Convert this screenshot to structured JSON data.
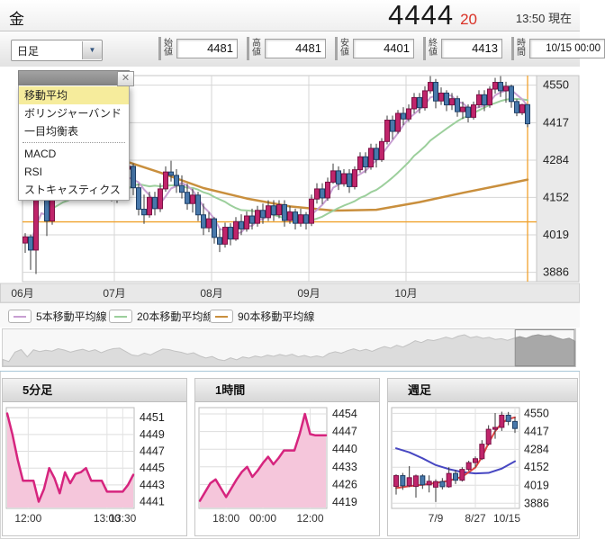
{
  "header": {
    "instrument": "金",
    "price": "4444",
    "price_change": "20",
    "time_label": "13:50 現在"
  },
  "toolbar": {
    "period_select": {
      "value": "日足"
    },
    "fields": [
      {
        "label": "始値",
        "value": "4481"
      },
      {
        "label": "高値",
        "value": "4481"
      },
      {
        "label": "安値",
        "value": "4401"
      },
      {
        "label": "終値",
        "value": "4413"
      },
      {
        "label": "時間",
        "value": "10/15 00:00"
      }
    ]
  },
  "indicator_menu": {
    "items": [
      {
        "label": "移動平均",
        "selected": true
      },
      {
        "label": "ボリンジャーバンド",
        "selected": false
      },
      {
        "label": "一目均衡表",
        "selected": false
      },
      {
        "label": "MACD",
        "selected": false
      },
      {
        "label": "RSI",
        "selected": false
      },
      {
        "label": "ストキャスティクス",
        "selected": false
      }
    ],
    "divider_after_index": 2
  },
  "legend": [
    {
      "label": "5本移動平均線",
      "color": "#c89fd2"
    },
    {
      "label": "20本移動平均線",
      "color": "#9ccf9c"
    },
    {
      "label": "90本移動平均線",
      "color": "#c98f3d"
    }
  ],
  "colors": {
    "up": "#c0256b",
    "up_border": "#7c1146",
    "down": "#4878ab",
    "down_border": "#1e3f66",
    "wick": "#3a3a3a",
    "ma5": "#c89fd2",
    "ma20": "#9ccf9c",
    "ma90": "#c98f3d",
    "reference": "#f0a22e",
    "sub_line": "#d6247e",
    "sub_fill": "#f5c6db",
    "weekly_ma_fast": "#e04343",
    "weekly_ma_slow": "#4747c2",
    "price_change": "#d93025",
    "menu_highlight": "#f6ec9c",
    "grid": "#d6d6d6"
  },
  "chart_data": [
    {
      "type": "candlestick",
      "title": "日足",
      "y_ticks": [
        3886,
        4019,
        4152,
        4284,
        4417,
        4550
      ],
      "y_range": [
        3853,
        4584
      ],
      "x_ticks": [
        {
          "index": 0,
          "label": "06月"
        },
        {
          "index": 17,
          "label": "07月"
        },
        {
          "index": 35,
          "label": "08月"
        },
        {
          "index": 53,
          "label": "09月"
        },
        {
          "index": 71,
          "label": "10月"
        }
      ],
      "reference_line": 4065,
      "current_marker_index": 93,
      "candles": [
        [
          3990,
          4025,
          3955,
          4012
        ],
        [
          4012,
          4020,
          3895,
          3965
        ],
        [
          3965,
          4190,
          3880,
          4175
        ],
        [
          4175,
          4245,
          4140,
          4230
        ],
        [
          4230,
          4240,
          4015,
          4068
        ],
        [
          4068,
          4240,
          4055,
          4225
        ],
        [
          4225,
          4252,
          4160,
          4186
        ],
        [
          4186,
          4232,
          4150,
          4215
        ],
        [
          4215,
          4262,
          4180,
          4196
        ],
        [
          4196,
          4270,
          4172,
          4250
        ],
        [
          4250,
          4280,
          4198,
          4220
        ],
        [
          4220,
          4258,
          4150,
          4172
        ],
        [
          4172,
          4230,
          4142,
          4210
        ],
        [
          4210,
          4252,
          4180,
          4236
        ],
        [
          4236,
          4262,
          4170,
          4190
        ],
        [
          4190,
          4240,
          4162,
          4226
        ],
        [
          4226,
          4240,
          4138,
          4160
        ],
        [
          4160,
          4230,
          4132,
          4216
        ],
        [
          4216,
          4272,
          4190,
          4252
        ],
        [
          4252,
          4292,
          4222,
          4262
        ],
        [
          4262,
          4272,
          4160,
          4186
        ],
        [
          4186,
          4200,
          4088,
          4110
        ],
        [
          4110,
          4162,
          4058,
          4090
        ],
        [
          4090,
          4172,
          4080,
          4152
        ],
        [
          4152,
          4172,
          4088,
          4112
        ],
        [
          4112,
          4202,
          4100,
          4182
        ],
        [
          4182,
          4262,
          4172,
          4242
        ],
        [
          4242,
          4282,
          4208,
          4230
        ],
        [
          4230,
          4252,
          4168,
          4194
        ],
        [
          4194,
          4230,
          4148,
          4170
        ],
        [
          4170,
          4200,
          4108,
          4130
        ],
        [
          4130,
          4182,
          4098,
          4160
        ],
        [
          4160,
          4172,
          4068,
          4090
        ],
        [
          4090,
          4130,
          4018,
          4044
        ],
        [
          4044,
          4100,
          4028,
          4076
        ],
        [
          4076,
          4082,
          3988,
          4010
        ],
        [
          4010,
          4040,
          3958,
          3986
        ],
        [
          3986,
          4062,
          3974,
          4046
        ],
        [
          4046,
          4060,
          3982,
          4004
        ],
        [
          4004,
          4082,
          3998,
          4066
        ],
        [
          4066,
          4092,
          4018,
          4040
        ],
        [
          4040,
          4102,
          4030,
          4086
        ],
        [
          4086,
          4112,
          4038,
          4060
        ],
        [
          4060,
          4122,
          4048,
          4106
        ],
        [
          4106,
          4130,
          4058,
          4080
        ],
        [
          4080,
          4142,
          4068,
          4122
        ],
        [
          4122,
          4142,
          4068,
          4090
        ],
        [
          4090,
          4142,
          4078,
          4126
        ],
        [
          4126,
          4142,
          4048,
          4070
        ],
        [
          4070,
          4122,
          4058,
          4100
        ],
        [
          4100,
          4112,
          4038,
          4060
        ],
        [
          4060,
          4112,
          4048,
          4090
        ],
        [
          4090,
          4100,
          4038,
          4060
        ],
        [
          4060,
          4162,
          4050,
          4146
        ],
        [
          4146,
          4202,
          4130,
          4182
        ],
        [
          4182,
          4202,
          4128,
          4150
        ],
        [
          4150,
          4222,
          4140,
          4206
        ],
        [
          4206,
          4272,
          4200,
          4246
        ],
        [
          4246,
          4262,
          4178,
          4200
        ],
        [
          4200,
          4252,
          4190,
          4236
        ],
        [
          4236,
          4252,
          4168,
          4190
        ],
        [
          4190,
          4262,
          4180,
          4250
        ],
        [
          4250,
          4312,
          4240,
          4296
        ],
        [
          4296,
          4312,
          4238,
          4260
        ],
        [
          4260,
          4342,
          4250,
          4326
        ],
        [
          4326,
          4342,
          4258,
          4286
        ],
        [
          4286,
          4362,
          4278,
          4350
        ],
        [
          4350,
          4442,
          4340,
          4426
        ],
        [
          4426,
          4442,
          4358,
          4386
        ],
        [
          4386,
          4462,
          4378,
          4450
        ],
        [
          4450,
          4472,
          4408,
          4430
        ],
        [
          4430,
          4482,
          4420,
          4466
        ],
        [
          4466,
          4522,
          4450,
          4506
        ],
        [
          4506,
          4522,
          4450,
          4470
        ],
        [
          4470,
          4546,
          4460,
          4530
        ],
        [
          4530,
          4582,
          4520,
          4560
        ],
        [
          4560,
          4572,
          4468,
          4494
        ],
        [
          4494,
          4542,
          4480,
          4522
        ],
        [
          4522,
          4532,
          4458,
          4480
        ],
        [
          4480,
          4522,
          4462,
          4502
        ],
        [
          4502,
          4512,
          4438,
          4456
        ],
        [
          4456,
          4492,
          4430,
          4472
        ],
        [
          4472,
          4482,
          4418,
          4436
        ],
        [
          4436,
          4492,
          4428,
          4480
        ],
        [
          4480,
          4532,
          4470,
          4516
        ],
        [
          4516,
          4532,
          4458,
          4480
        ],
        [
          4480,
          4546,
          4470,
          4536
        ],
        [
          4536,
          4576,
          4520,
          4560
        ],
        [
          4560,
          4582,
          4508,
          4530
        ],
        [
          4530,
          4562,
          4488,
          4546
        ],
        [
          4546,
          4552,
          4470,
          4492
        ],
        [
          4492,
          4500,
          4440,
          4452
        ],
        [
          4452,
          4484,
          4444,
          4481
        ],
        [
          4481,
          4481,
          4401,
          4413
        ]
      ],
      "ma90_points": [
        [
          17,
          4290
        ],
        [
          25,
          4240
        ],
        [
          33,
          4185
        ],
        [
          41,
          4148
        ],
        [
          49,
          4120
        ],
        [
          57,
          4105
        ],
        [
          65,
          4108
        ],
        [
          73,
          4135
        ],
        [
          81,
          4168
        ],
        [
          88,
          4195
        ],
        [
          93,
          4215
        ]
      ]
    },
    {
      "type": "area",
      "title": "5分足",
      "y_ticks": [
        4441,
        4443,
        4445,
        4447,
        4449,
        4451
      ],
      "y_range": [
        4440.2,
        4452.2
      ],
      "x_ticks": [
        {
          "index": 4,
          "label": "12:00"
        },
        {
          "index": 19,
          "label": "13:00"
        },
        {
          "index": 22,
          "label": "13:30"
        }
      ],
      "values": [
        4451.5,
        4449,
        4446,
        4443.5,
        4443.5,
        4443.5,
        4441,
        4442.5,
        4445,
        4443.8,
        4442,
        4444.5,
        4443.2,
        4444.3,
        4444.5,
        4445,
        4443.5,
        4443.5,
        4443.5,
        4442.2,
        4442.2,
        4442.2,
        4442.2,
        4443,
        4444.2
      ]
    },
    {
      "type": "area",
      "title": "1時間",
      "y_ticks": [
        4419,
        4426,
        4433,
        4440,
        4447,
        4454
      ],
      "y_range": [
        4416.5,
        4456.5
      ],
      "x_ticks": [
        {
          "index": 5,
          "label": "18:00"
        },
        {
          "index": 12,
          "label": "00:00"
        },
        {
          "index": 21,
          "label": "12:00"
        }
      ],
      "values": [
        4419.5,
        4423,
        4426.5,
        4428,
        4424.5,
        4421,
        4424.5,
        4428,
        4431,
        4433,
        4429,
        4431.5,
        4434.5,
        4437,
        4434,
        4436.5,
        4439.5,
        4439.5,
        4439.5,
        4446,
        4454,
        4446,
        4445.5,
        4445.5,
        4445.5
      ]
    },
    {
      "type": "candlestick",
      "title": "週足",
      "y_ticks": [
        3886,
        4019,
        4152,
        4284,
        4417,
        4550
      ],
      "y_range": [
        3848,
        4592
      ],
      "x_ticks": [
        {
          "index": 6,
          "label": "7/9"
        },
        {
          "index": 12,
          "label": "8/27"
        },
        {
          "index": 18,
          "label": "10/15"
        }
      ],
      "candles": [
        [
          4010,
          4100,
          3950,
          4090
        ],
        [
          4090,
          4110,
          3985,
          4015
        ],
        [
          4015,
          4160,
          4005,
          4075
        ],
        [
          4010,
          4098,
          3928,
          4088
        ],
        [
          4088,
          4100,
          3992,
          4022
        ],
        [
          4022,
          4092,
          3966,
          4048
        ],
        [
          4005,
          4062,
          3895,
          4046
        ],
        [
          4046,
          4072,
          3988,
          4008
        ],
        [
          4008,
          4152,
          4000,
          4106
        ],
        [
          4106,
          4132,
          4028,
          4056
        ],
        [
          4056,
          4152,
          4046,
          4136
        ],
        [
          4136,
          4200,
          4124,
          4186
        ],
        [
          4186,
          4232,
          4150,
          4215
        ],
        [
          4215,
          4352,
          4205,
          4322
        ],
        [
          4322,
          4462,
          4312,
          4432
        ],
        [
          4432,
          4552,
          4362,
          4446
        ],
        [
          4446,
          4562,
          4420,
          4536
        ],
        [
          4536,
          4560,
          4462,
          4490
        ],
        [
          4490,
          4522,
          4405,
          4438
        ]
      ],
      "ma_fast_points": [
        [
          0,
          3998
        ],
        [
          2,
          4012
        ],
        [
          4,
          4022
        ],
        [
          6,
          4036
        ],
        [
          8,
          4052
        ],
        [
          10,
          4082
        ],
        [
          12,
          4150
        ],
        [
          13,
          4228
        ],
        [
          14,
          4330
        ],
        [
          15,
          4418
        ],
        [
          16,
          4478
        ],
        [
          17,
          4508
        ],
        [
          18,
          4520
        ]
      ],
      "ma_slow_points": [
        [
          0,
          4292
        ],
        [
          2,
          4262
        ],
        [
          4,
          4218
        ],
        [
          6,
          4168
        ],
        [
          8,
          4138
        ],
        [
          10,
          4116
        ],
        [
          12,
          4106
        ],
        [
          14,
          4110
        ],
        [
          16,
          4142
        ],
        [
          18,
          4196
        ]
      ]
    },
    {
      "type": "area",
      "title": "",
      "role": "range-navigator",
      "values_from": "daily closes",
      "selected_window": [
        0.895,
        1.0
      ]
    }
  ]
}
